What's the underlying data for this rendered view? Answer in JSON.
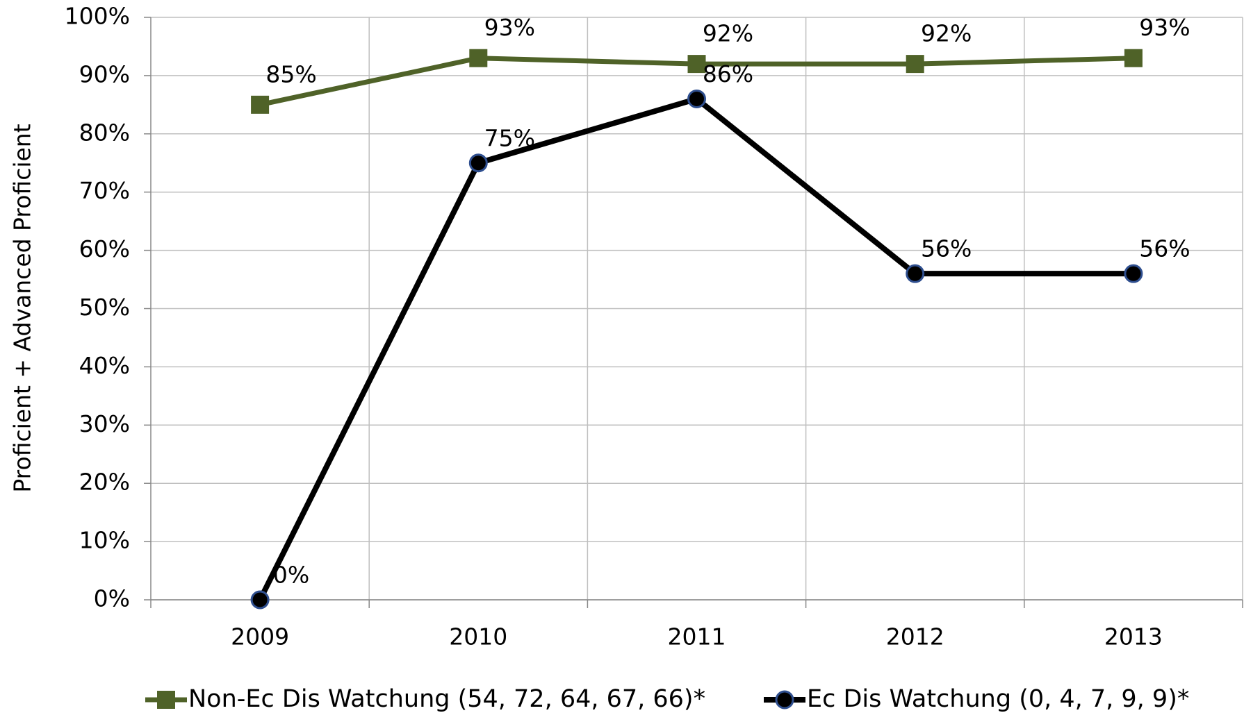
{
  "chart_data": {
    "type": "line",
    "y_label": "Proficient + Advanced Proficient",
    "categories": [
      "2009",
      "2010",
      "2011",
      "2012",
      "2013"
    ],
    "series": [
      {
        "name": "Non-Ec Dis Watchung (54, 72, 64, 67, 66)*",
        "color": "#4f6228",
        "marker": "square",
        "values": [
          85,
          93,
          92,
          92,
          93
        ],
        "value_labels": [
          "85%",
          "93%",
          "92%",
          "92%",
          "93%"
        ]
      },
      {
        "name": "Ec Dis Watchung (0, 4, 7, 9, 9)*",
        "color": "#000000",
        "marker": "circle",
        "values": [
          0,
          75,
          86,
          56,
          56
        ],
        "value_labels": [
          "0%",
          "75%",
          "86%",
          "56%",
          "56%"
        ]
      }
    ],
    "ylim": [
      0,
      100
    ],
    "yticks": [
      {
        "value": 0,
        "label": "0%"
      },
      {
        "value": 10,
        "label": "10%"
      },
      {
        "value": 20,
        "label": "20%"
      },
      {
        "value": 30,
        "label": "30%"
      },
      {
        "value": 40,
        "label": "40%"
      },
      {
        "value": 50,
        "label": "50%"
      },
      {
        "value": 60,
        "label": "60%"
      },
      {
        "value": 70,
        "label": "70%"
      },
      {
        "value": 80,
        "label": "80%"
      },
      {
        "value": 90,
        "label": "90%"
      },
      {
        "value": 100,
        "label": "100%"
      }
    ],
    "grid": true,
    "legend": "bottom"
  }
}
